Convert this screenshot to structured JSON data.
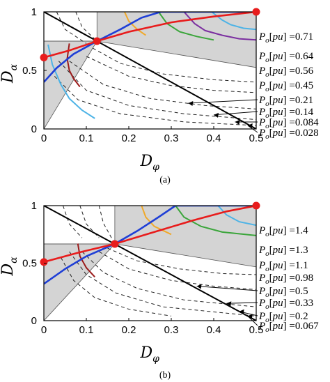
{
  "chart_data": [
    {
      "panel": "a",
      "caption": "(a)",
      "type": "line",
      "xlabel": "D_φ",
      "ylabel": "D_α",
      "xlim": [
        0,
        0.5
      ],
      "ylim": [
        0,
        1
      ],
      "xticks": [
        "0",
        "0.1",
        "0.2",
        "0.3",
        "0.4",
        "0.5"
      ],
      "yticks": [
        "0",
        "0.5",
        "1"
      ],
      "corner": [
        0.125,
        0.75
      ],
      "po_label_prefix": "P_o[pu]",
      "po_labels": [
        "=0.71",
        "=0.64",
        "=0.56",
        "=0.45",
        "=0.21",
        "=0.14",
        "=0.084",
        "=0.028"
      ],
      "colored_contours": [
        {
          "color": "#4db3e6",
          "upper": [
            [
              0.395,
              1.0
            ],
            [
              0.42,
              0.93
            ],
            [
              0.44,
              0.89
            ],
            [
              0.47,
              0.86
            ],
            [
              0.5,
              0.85
            ]
          ],
          "lower": [
            [
              0.01,
              0.72
            ],
            [
              0.02,
              0.55
            ],
            [
              0.04,
              0.38
            ],
            [
              0.06,
              0.26
            ],
            [
              0.09,
              0.16
            ],
            [
              0.12,
              0.09
            ]
          ]
        },
        {
          "color": "#7b2fa0",
          "upper": [
            [
              0.33,
              1.0
            ],
            [
              0.355,
              0.9
            ],
            [
              0.38,
              0.84
            ],
            [
              0.42,
              0.8
            ],
            [
              0.46,
              0.77
            ],
            [
              0.5,
              0.76
            ]
          ],
          "lower": []
        },
        {
          "color": "#3aa53a",
          "upper": [
            [
              0.27,
              1.0
            ],
            [
              0.29,
              0.9
            ],
            [
              0.32,
              0.83
            ],
            [
              0.36,
              0.79
            ],
            [
              0.4,
              0.76
            ]
          ],
          "lower": []
        },
        {
          "color": "#f0a92a",
          "upper": [
            [
              0.19,
              1.0
            ],
            [
              0.2,
              0.92
            ],
            [
              0.22,
              0.85
            ],
            [
              0.24,
              0.8
            ]
          ],
          "lower": []
        },
        {
          "color": "#9b1b1b",
          "upper": [],
          "lower": [
            [
              0.06,
              0.73
            ],
            [
              0.055,
              0.6
            ],
            [
              0.06,
              0.5
            ],
            [
              0.07,
              0.43
            ],
            [
              0.085,
              0.36
            ]
          ]
        }
      ],
      "dashed_contours": [
        [
          [
            0.075,
            1.0
          ],
          [
            0.09,
            0.87
          ],
          [
            0.125,
            0.75
          ]
        ],
        [
          [
            0.03,
            1.0
          ],
          [
            0.05,
            0.85
          ],
          [
            0.1,
            0.73
          ]
        ],
        [
          [
            0.115,
            0.69
          ],
          [
            0.18,
            0.56
          ],
          [
            0.28,
            0.47
          ],
          [
            0.4,
            0.42
          ],
          [
            0.5,
            0.4
          ]
        ],
        [
          [
            0.1,
            0.62
          ],
          [
            0.2,
            0.45
          ],
          [
            0.3,
            0.37
          ],
          [
            0.4,
            0.33
          ],
          [
            0.5,
            0.31
          ]
        ],
        [
          [
            0.06,
            0.58
          ],
          [
            0.14,
            0.38
          ],
          [
            0.25,
            0.26
          ],
          [
            0.38,
            0.2
          ],
          [
            0.5,
            0.17
          ]
        ],
        [
          [
            0.035,
            0.58
          ],
          [
            0.1,
            0.33
          ],
          [
            0.2,
            0.2
          ],
          [
            0.33,
            0.13
          ],
          [
            0.5,
            0.08
          ]
        ],
        [
          [
            0.025,
            0.45
          ],
          [
            0.08,
            0.25
          ],
          [
            0.18,
            0.13
          ],
          [
            0.33,
            0.06
          ],
          [
            0.5,
            0.03
          ]
        ]
      ],
      "arrows": [
        [
          0.34,
          0.22
        ],
        [
          0.4,
          0.12
        ],
        [
          0.45,
          0.06
        ],
        [
          0.48,
          0.03
        ]
      ],
      "blue_boundary": [
        [
          0.0,
          0.4
        ],
        [
          0.03,
          0.52
        ],
        [
          0.07,
          0.64
        ],
        [
          0.125,
          0.75
        ],
        [
          0.18,
          0.85
        ],
        [
          0.23,
          0.95
        ],
        [
          0.275,
          1.0
        ],
        [
          0.5,
          1.0
        ]
      ],
      "red_trajectory": [
        [
          0.0,
          0.61
        ],
        [
          0.06,
          0.67
        ],
        [
          0.125,
          0.75
        ],
        [
          0.2,
          0.83
        ],
        [
          0.3,
          0.91
        ],
        [
          0.4,
          0.96
        ],
        [
          0.5,
          1.0
        ]
      ],
      "red_markers": [
        [
          0.0,
          0.61
        ],
        [
          0.125,
          0.75
        ],
        [
          0.5,
          1.0
        ]
      ]
    },
    {
      "panel": "b",
      "caption": "(b)",
      "type": "line",
      "xlabel": "D_φ",
      "ylabel": "D_α",
      "xlim": [
        0,
        0.5
      ],
      "ylim": [
        0,
        1
      ],
      "xticks": [
        "0",
        "0.1",
        "0.2",
        "0.3",
        "0.4",
        "0.5"
      ],
      "yticks": [
        "0",
        "0.5",
        "1"
      ],
      "corner": [
        0.167,
        0.667
      ],
      "po_label_prefix": "P_o[pu]",
      "po_labels": [
        "=1.4",
        "=1.3",
        "=1.1",
        "=0.98",
        "=0.5",
        "=0.33",
        "=0.2",
        "=0.067"
      ],
      "colored_contours": [
        {
          "color": "#4db3e6",
          "upper": [
            [
              0.41,
              1.0
            ],
            [
              0.43,
              0.92
            ],
            [
              0.46,
              0.86
            ],
            [
              0.5,
              0.83
            ]
          ],
          "lower": []
        },
        {
          "color": "#3aa53a",
          "upper": [
            [
              0.31,
              1.0
            ],
            [
              0.33,
              0.9
            ],
            [
              0.37,
              0.82
            ],
            [
              0.42,
              0.77
            ],
            [
              0.5,
              0.74
            ]
          ],
          "lower": []
        },
        {
          "color": "#f0a92a",
          "upper": [
            [
              0.23,
              1.0
            ],
            [
              0.24,
              0.9
            ],
            [
              0.26,
              0.82
            ],
            [
              0.3,
              0.75
            ]
          ],
          "lower": []
        },
        {
          "color": "#9b1b1b",
          "upper": [],
          "lower": [
            [
              0.08,
              0.67
            ],
            [
              0.085,
              0.56
            ],
            [
              0.1,
              0.46
            ],
            [
              0.12,
              0.38
            ]
          ]
        }
      ],
      "dashed_contours": [
        [
          [
            0.13,
            1.0
          ],
          [
            0.14,
            0.85
          ],
          [
            0.167,
            0.667
          ]
        ],
        [
          [
            0.085,
            1.0
          ],
          [
            0.1,
            0.84
          ],
          [
            0.13,
            0.72
          ]
        ],
        [
          [
            0.045,
            1.0
          ],
          [
            0.06,
            0.84
          ],
          [
            0.09,
            0.72
          ]
        ],
        [
          [
            0.15,
            0.63
          ],
          [
            0.22,
            0.52
          ],
          [
            0.32,
            0.45
          ],
          [
            0.42,
            0.41
          ],
          [
            0.5,
            0.4
          ]
        ],
        [
          [
            0.13,
            0.6
          ],
          [
            0.2,
            0.45
          ],
          [
            0.3,
            0.35
          ],
          [
            0.4,
            0.3
          ],
          [
            0.5,
            0.27
          ]
        ],
        [
          [
            0.09,
            0.6
          ],
          [
            0.14,
            0.42
          ],
          [
            0.22,
            0.28
          ],
          [
            0.33,
            0.18
          ],
          [
            0.5,
            0.12
          ]
        ],
        [
          [
            0.06,
            0.6
          ],
          [
            0.1,
            0.4
          ],
          [
            0.17,
            0.24
          ],
          [
            0.28,
            0.12
          ],
          [
            0.5,
            0.04
          ]
        ],
        [
          [
            0.04,
            0.55
          ],
          [
            0.07,
            0.35
          ],
          [
            0.12,
            0.2
          ],
          [
            0.2,
            0.1
          ],
          [
            0.3,
            0.04
          ]
        ]
      ],
      "arrows": [
        [
          0.36,
          0.3
        ],
        [
          0.43,
          0.15
        ],
        [
          0.46,
          0.08
        ],
        [
          0.48,
          0.04
        ]
      ],
      "blue_boundary": [
        [
          0.0,
          0.32
        ],
        [
          0.05,
          0.45
        ],
        [
          0.1,
          0.56
        ],
        [
          0.167,
          0.667
        ],
        [
          0.22,
          0.78
        ],
        [
          0.27,
          0.9
        ],
        [
          0.31,
          1.0
        ],
        [
          0.5,
          1.0
        ]
      ],
      "red_trajectory": [
        [
          0.0,
          0.51
        ],
        [
          0.08,
          0.59
        ],
        [
          0.167,
          0.667
        ],
        [
          0.25,
          0.76
        ],
        [
          0.35,
          0.87
        ],
        [
          0.43,
          0.95
        ],
        [
          0.5,
          1.0
        ]
      ],
      "red_markers": [
        [
          0.0,
          0.51
        ],
        [
          0.167,
          0.667
        ],
        [
          0.5,
          1.0
        ]
      ]
    }
  ]
}
